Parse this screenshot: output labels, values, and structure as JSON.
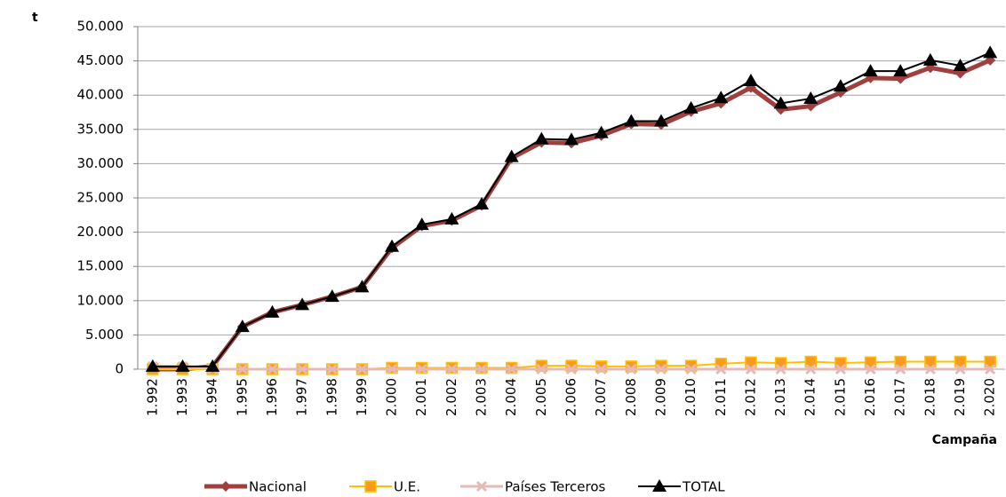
{
  "chart_data": {
    "type": "line",
    "y_label": "t",
    "x_label": "Campaña",
    "categories": [
      "1.992",
      "1.993",
      "1.994",
      "1.995",
      "1.996",
      "1.997",
      "1.998",
      "1.999",
      "2.000",
      "2.001",
      "2.002",
      "2.003",
      "2.004",
      "2.005",
      "2.006",
      "2.007",
      "2.008",
      "2.009",
      "2.010",
      "2.011",
      "2.012",
      "2.013",
      "2.014",
      "2.015",
      "2.016",
      "2.017",
      "2.018",
      "2.019",
      "2.020"
    ],
    "series": [
      {
        "name": "Nacional",
        "color": "#a0403e",
        "marker": "diamond",
        "values": [
          0,
          0,
          400,
          6200,
          8300,
          9400,
          10600,
          12000,
          17700,
          20900,
          21700,
          23900,
          30800,
          33100,
          33000,
          34100,
          35800,
          35700,
          37600,
          38800,
          41100,
          37900,
          38400,
          40400,
          42500,
          42400,
          44000,
          43200,
          45100
        ]
      },
      {
        "name": "U.E.",
        "color": "#ffc000",
        "marker": "square",
        "values": [
          0,
          0,
          0,
          0,
          0,
          0,
          0,
          0,
          200,
          200,
          200,
          200,
          200,
          500,
          500,
          400,
          400,
          500,
          500,
          800,
          1000,
          900,
          1100,
          900,
          1000,
          1100,
          1100,
          1100,
          1100
        ]
      },
      {
        "name": "Países Terceros",
        "color": "#e6b9b8",
        "marker": "x",
        "values": [
          400,
          400,
          0,
          0,
          0,
          0,
          0,
          0,
          0,
          0,
          0,
          0,
          0,
          0,
          0,
          0,
          0,
          0,
          0,
          0,
          0,
          0,
          0,
          0,
          0,
          0,
          0,
          0,
          0
        ]
      },
      {
        "name": "TOTAL",
        "color": "#000000",
        "marker": "triangle",
        "values": [
          400,
          400,
          400,
          6200,
          8300,
          9400,
          10600,
          12000,
          17900,
          21100,
          21900,
          24100,
          31000,
          33600,
          33500,
          34500,
          36200,
          36200,
          38100,
          39600,
          42100,
          38800,
          39500,
          41300,
          43500,
          43500,
          45100,
          44300,
          46200
        ]
      }
    ],
    "ylim": [
      0,
      50000
    ],
    "yticks": [
      0,
      {
        "value": 5000,
        "label": "5.000"
      },
      {
        "value": 10000,
        "label": "10.000"
      },
      {
        "value": 15000,
        "label": "15.000"
      },
      {
        "value": 20000,
        "label": "20.000"
      },
      {
        "value": 25000,
        "label": "25.000"
      },
      {
        "value": 30000,
        "label": "30.000"
      },
      {
        "value": 35000,
        "label": "35.000"
      },
      {
        "value": 40000,
        "label": "40.000"
      },
      {
        "value": 45000,
        "label": "45.000"
      },
      {
        "value": 50000,
        "label": "50.000"
      }
    ],
    "grid": true,
    "legend": "bottom"
  }
}
